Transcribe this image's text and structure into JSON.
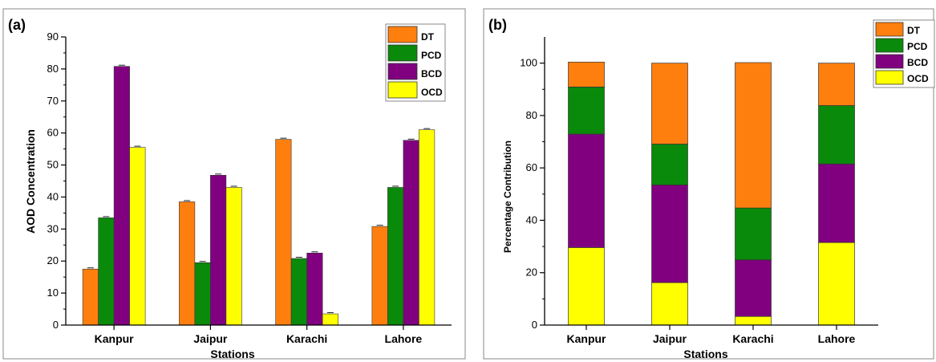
{
  "colors": {
    "DT": "#ff7f0e",
    "PCD": "#0a8a0a",
    "BCD": "#800080",
    "OCD": "#ffff00"
  },
  "chart_data": [
    {
      "type": "bar",
      "panel_label": "(a)",
      "title": "",
      "xlabel": "Stations",
      "ylabel": "AOD Concentration",
      "categories": [
        "Kanpur",
        "Jaipur",
        "Karachi",
        "Lahore"
      ],
      "series": [
        {
          "name": "DT",
          "values": [
            17.5,
            38.5,
            58.0,
            30.8
          ]
        },
        {
          "name": "PCD",
          "values": [
            33.5,
            19.5,
            20.8,
            43.0
          ]
        },
        {
          "name": "BCD",
          "values": [
            80.8,
            46.8,
            22.5,
            57.7
          ]
        },
        {
          "name": "OCD",
          "values": [
            55.5,
            43.0,
            3.5,
            61.0
          ]
        }
      ],
      "ylim": [
        0,
        90
      ],
      "yticks": [
        0,
        10,
        20,
        30,
        40,
        50,
        60,
        70,
        80,
        90
      ],
      "error_bars": true,
      "legend": "top-right",
      "grid": false
    },
    {
      "type": "bar",
      "stacked": true,
      "panel_label": "(b)",
      "title": "",
      "xlabel": "Stations",
      "ylabel": "Percentage Contribution",
      "categories": [
        "Kanpur",
        "Jaipur",
        "Karachi",
        "Lahore"
      ],
      "series": [
        {
          "name": "OCD",
          "values": [
            29.6,
            16.2,
            3.3,
            31.5
          ]
        },
        {
          "name": "BCD",
          "values": [
            43.3,
            37.3,
            21.6,
            30.0
          ]
        },
        {
          "name": "PCD",
          "values": [
            18.0,
            15.6,
            19.8,
            22.3
          ]
        },
        {
          "name": "DT",
          "values": [
            9.5,
            30.9,
            55.5,
            16.2
          ]
        }
      ],
      "legend_order": [
        "DT",
        "PCD",
        "BCD",
        "OCD"
      ],
      "ylim": [
        0,
        110
      ],
      "yticks": [
        0,
        20,
        40,
        60,
        80,
        100
      ],
      "legend": "top-right",
      "grid": false
    }
  ]
}
